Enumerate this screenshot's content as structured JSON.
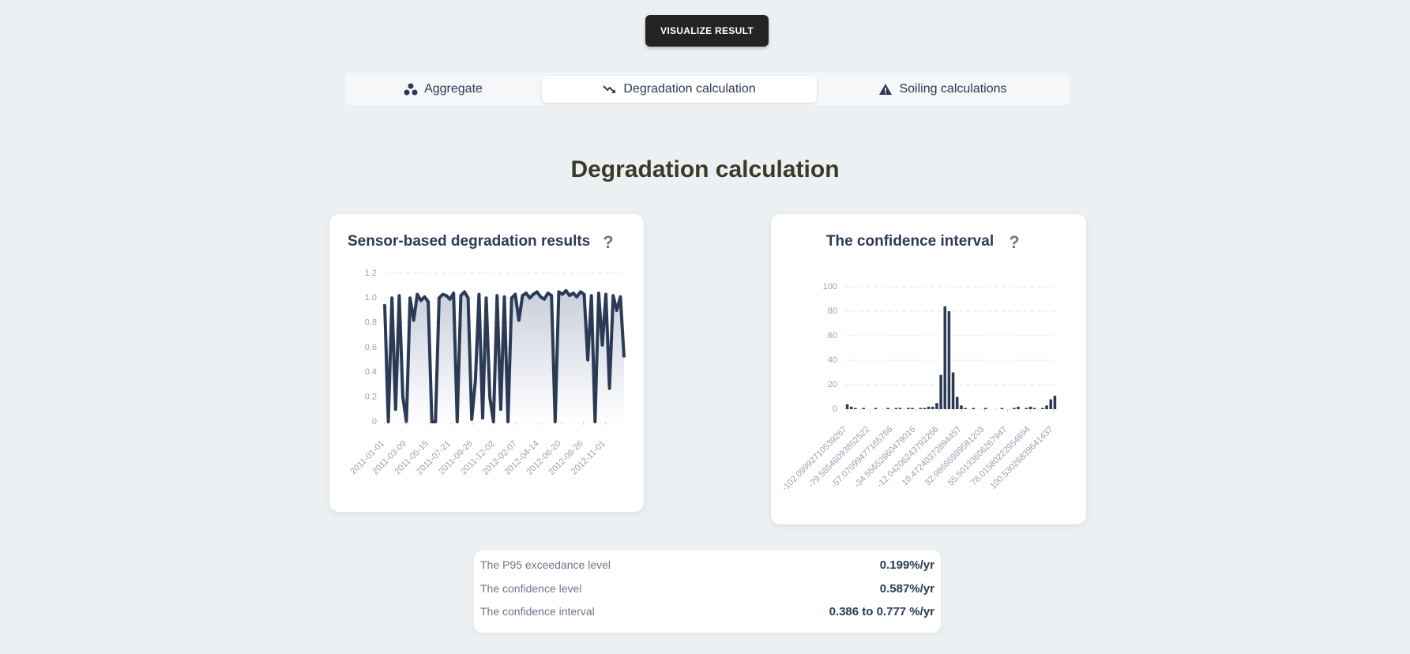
{
  "button": "VISUALIZE RESULT",
  "tabs": [
    "Aggregate",
    "Degradation calculation",
    "Soiling calculations"
  ],
  "heading": "Degradation calculation",
  "help_icon": "?",
  "chart_data": [
    {
      "type": "area",
      "title": "Sensor-based degradation results",
      "color": "#2b3a55",
      "x": [
        "2011-01-01",
        "2011-01-12",
        "2011-01-23",
        "2011-02-03",
        "2011-02-14",
        "2011-02-25",
        "2011-03-08",
        "2011-03-19",
        "2011-03-30",
        "2011-04-10",
        "2011-04-21",
        "2011-05-02",
        "2011-05-13",
        "2011-05-24",
        "2011-06-04",
        "2011-06-15",
        "2011-06-26",
        "2011-07-07",
        "2011-07-18",
        "2011-07-29",
        "2011-08-09",
        "2011-08-20",
        "2011-08-31",
        "2011-09-11",
        "2011-09-22",
        "2011-10-03",
        "2011-10-14",
        "2011-10-25",
        "2011-11-05",
        "2011-11-16",
        "2011-11-27",
        "2011-12-08",
        "2011-12-19",
        "2011-12-30",
        "2012-01-10",
        "2012-01-21",
        "2012-02-01",
        "2012-02-12",
        "2012-02-23",
        "2012-03-05",
        "2012-03-16",
        "2012-03-27",
        "2012-04-07",
        "2012-04-18",
        "2012-04-29",
        "2012-05-10",
        "2012-05-21",
        "2012-06-01",
        "2012-06-12",
        "2012-06-23",
        "2012-07-04",
        "2012-07-15",
        "2012-07-26",
        "2012-08-06",
        "2012-08-17",
        "2012-08-28",
        "2012-09-08",
        "2012-09-19",
        "2012-09-30",
        "2012-10-11",
        "2012-10-22",
        "2012-11-02",
        "2012-11-13",
        "2012-11-24",
        "2012-12-05",
        "2012-12-16",
        "2012-12-27"
      ],
      "values": [
        0.95,
        0,
        1.0,
        0.1,
        1.02,
        0.2,
        0,
        1.0,
        0.82,
        1.03,
        0.98,
        1.01,
        0.97,
        0,
        0,
        1.0,
        1.03,
        1.02,
        0.99,
        1.04,
        0,
        1.02,
        1.05,
        1.0,
        0.02,
        0.33,
        1.03,
        0.03,
        1.0,
        0.2,
        0,
        1.02,
        0.1,
        1.01,
        0,
        1.0,
        1.03,
        0.82,
        1.02,
        1.04,
        1.0,
        1.03,
        1.05,
        1.01,
        0.99,
        1.04,
        1.02,
        0,
        1.05,
        1.03,
        1.06,
        1.02,
        1.04,
        1.01,
        1.05,
        1.03,
        0.5,
        1.02,
        0,
        1.04,
        0.62,
        1.03,
        0.27,
        1.02,
        0.9,
        1.01,
        0.52
      ],
      "xlim": [
        "2011-01-01",
        "2012-12-27"
      ],
      "xticks": [
        "2011-01-01",
        "2011-03-09",
        "2011-05-15",
        "2011-07-21",
        "2011-09-26",
        "2011-12-02",
        "2012-02-07",
        "2012-04-14",
        "2012-06-20",
        "2012-08-26",
        "2012-11-01"
      ],
      "ylim": [
        0,
        1.2
      ],
      "yticks": [
        0,
        0.2,
        0.4,
        0.6,
        0.8,
        {
          "value": 1,
          "label": "1.0"
        },
        1.2
      ],
      "grid": true
    },
    {
      "type": "histogram",
      "title": "The confidence interval",
      "color": "#2b3a55",
      "bins": [
        -104,
        -100,
        -96,
        -92,
        -88,
        -84,
        -80,
        -76,
        -72,
        -68,
        -64,
        -60,
        -56,
        -52,
        -48,
        -44,
        -40,
        -36,
        -32,
        -28,
        -24,
        -20,
        -16,
        -12,
        -8,
        -4,
        0,
        4,
        8,
        12,
        16,
        20,
        24,
        28,
        32,
        36,
        40,
        44,
        48,
        52,
        56,
        60,
        64,
        68,
        72,
        76,
        80,
        84,
        88,
        92,
        96,
        100,
        104
      ],
      "values": [
        4,
        2,
        1,
        0,
        1,
        0,
        0,
        1,
        0,
        0,
        1,
        0,
        1,
        1,
        0,
        1,
        1,
        0,
        1,
        1,
        2,
        2,
        5,
        28,
        84,
        80,
        30,
        10,
        3,
        1,
        0,
        1,
        0,
        0,
        1,
        0,
        0,
        0,
        1,
        0,
        0,
        1,
        2,
        0,
        1,
        2,
        1,
        0,
        1,
        3,
        8,
        11
      ],
      "xlim": [
        -104,
        104
      ],
      "xticks": [
        -102.09992710539267,
        -79.58546093852522,
        -57.07099477165766,
        -34.55652860479016,
        -12.04206243792266,
        10.47240372894457,
        32.98686989581203,
        55.50133606267947,
        78.01580222954694,
        100.53026839641437
      ],
      "ylim": [
        0,
        100
      ],
      "yticks": [
        0,
        20,
        40,
        60,
        80,
        100
      ],
      "grid": true
    }
  ],
  "stats": [
    {
      "label": "The P95 exceedance level",
      "value": "0.199%/yr"
    },
    {
      "label": "The confidence level",
      "value": "0.587%/yr"
    },
    {
      "label": "The confidence interval",
      "value": "0.386 to 0.777 %/yr"
    }
  ]
}
